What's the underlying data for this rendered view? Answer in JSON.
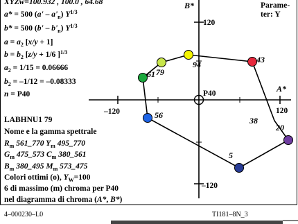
{
  "header": {
    "line1": "XYZw=100.932 , 100.0 , 64.68",
    "param_label": "Parame-",
    "param_value": "ter: Y"
  },
  "formulas": [
    "a* = 500 (a' – a'n) Y^1/3",
    "b* = 500 (b' – b'n) Y^1/3",
    "a = a2 [x/y + 1]",
    "b = b2 [z/y + 1/6 ]^1/3",
    "a2 = 1/15 = 0.06666",
    "b2 = –1/12 = –0.08333",
    "n = P40"
  ],
  "info": {
    "title": "LABHNU1 79",
    "lines": [
      "Nome e la gamma spettrale",
      "Rm 561_770  Ym 495_770",
      "Gm 475_573  Cm 380_561",
      "Bm 380_495  Mm 573_475",
      "Colori ottimi (o), YW=100",
      "6 di massimo (m) chroma per P40",
      "nel diagramma di chroma (A*, B*)"
    ]
  },
  "axes": {
    "a_label": "A*",
    "b_label": "B*",
    "tick_top": "120",
    "tick_bottom": "–120",
    "tick_left": "–120",
    "tick_right": "120",
    "center_label": "P40"
  },
  "points": [
    {
      "label": "94",
      "color": "#f5f500"
    },
    {
      "label": "79",
      "color": "#c8e64a"
    },
    {
      "label": "61",
      "color": "#1aa83c"
    },
    {
      "label": "56",
      "color": "#1e64e6"
    },
    {
      "label": "5",
      "color": "#283c96"
    },
    {
      "label": "20",
      "color": "#6e3ca0"
    },
    {
      "label": "38",
      "color": "#e6285a"
    },
    {
      "label": "43",
      "color": "#e6283c"
    }
  ],
  "footer": {
    "left": "4–000230–L0",
    "right": "TI181–8N_3"
  }
}
